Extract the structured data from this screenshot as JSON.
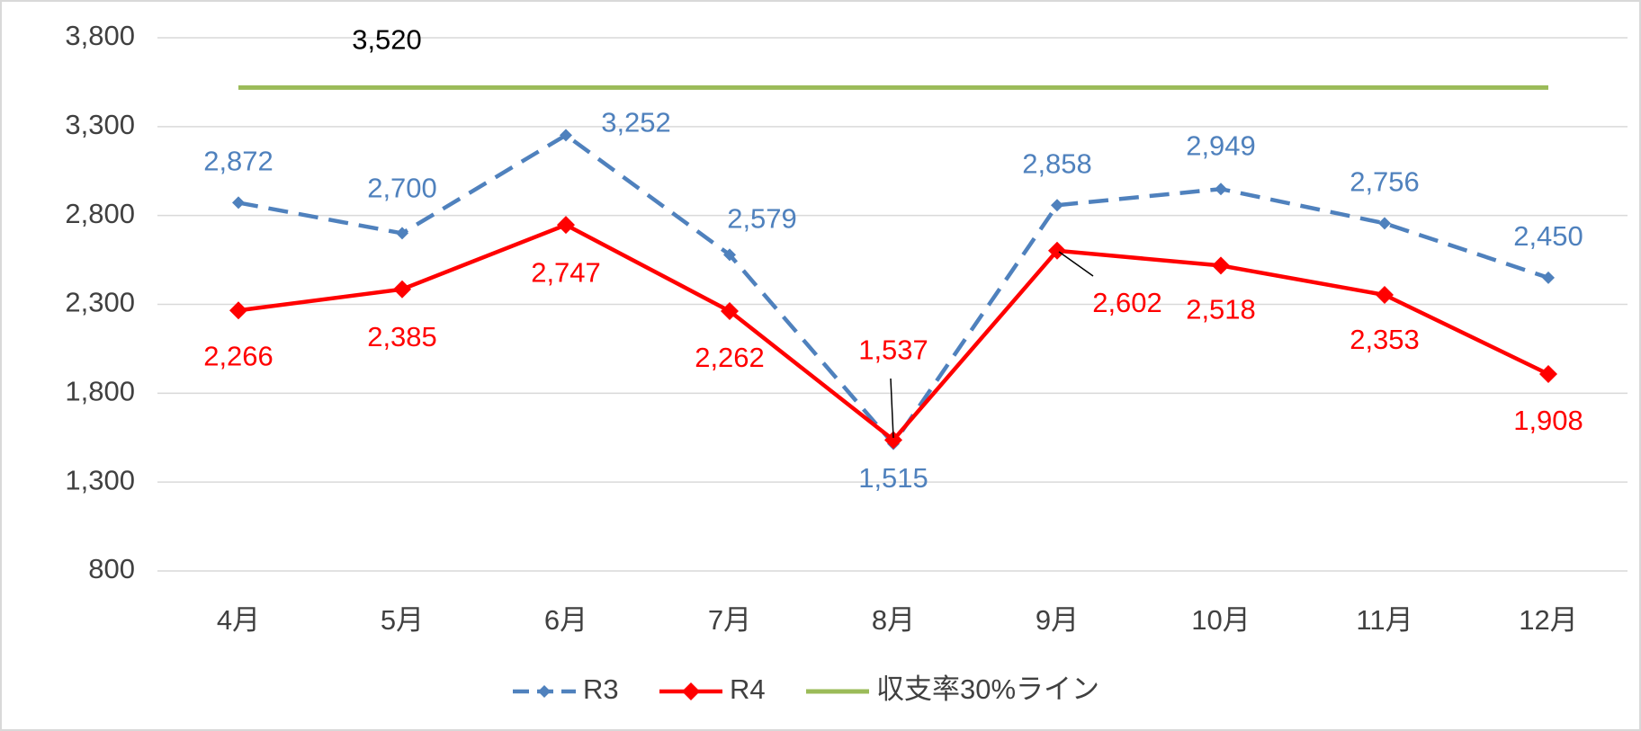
{
  "chart_data": {
    "type": "line",
    "categories": [
      "4月",
      "5月",
      "6月",
      "7月",
      "8月",
      "9月",
      "10月",
      "11月",
      "12月"
    ],
    "series": [
      {
        "name": "R3",
        "color": "#4f81bd",
        "dash": true,
        "marker": "diamond",
        "values": [
          2872,
          2700,
          3252,
          2579,
          1515,
          2858,
          2949,
          2756,
          2450
        ],
        "value_labels": [
          "2,872",
          "2,700",
          "3,252",
          "2,579",
          "1,515",
          "2,858",
          "2,949",
          "2,756",
          "2,450"
        ]
      },
      {
        "name": "R4",
        "color": "#ff0000",
        "dash": false,
        "marker": "diamond",
        "values": [
          2266,
          2385,
          2747,
          2262,
          1537,
          2602,
          2518,
          2353,
          1908
        ],
        "value_labels": [
          "2,266",
          "2,385",
          "2,747",
          "2,262",
          "1,537",
          "2,602",
          "2,518",
          "2,353",
          "1,908"
        ]
      },
      {
        "name": "収支率30%ライン",
        "color": "#9bbb59",
        "dash": false,
        "marker": null,
        "values": [
          3520,
          3520,
          3520,
          3520,
          3520,
          3520,
          3520,
          3520,
          3520
        ],
        "value_labels": [
          "3,520",
          null,
          null,
          null,
          null,
          null,
          null,
          null,
          null
        ]
      }
    ],
    "ylim": [
      800,
      3800
    ],
    "yticks": [
      800,
      {
        "value": 1300,
        "label": "1,300"
      },
      {
        "value": 1800,
        "label": "1,800"
      },
      {
        "value": 2300,
        "label": "2,300"
      },
      {
        "value": 2800,
        "label": "2,800"
      },
      {
        "value": 3300,
        "label": "3,300"
      },
      {
        "value": 3800,
        "label": "3,800"
      }
    ],
    "grid": true,
    "legend": "bottom"
  }
}
